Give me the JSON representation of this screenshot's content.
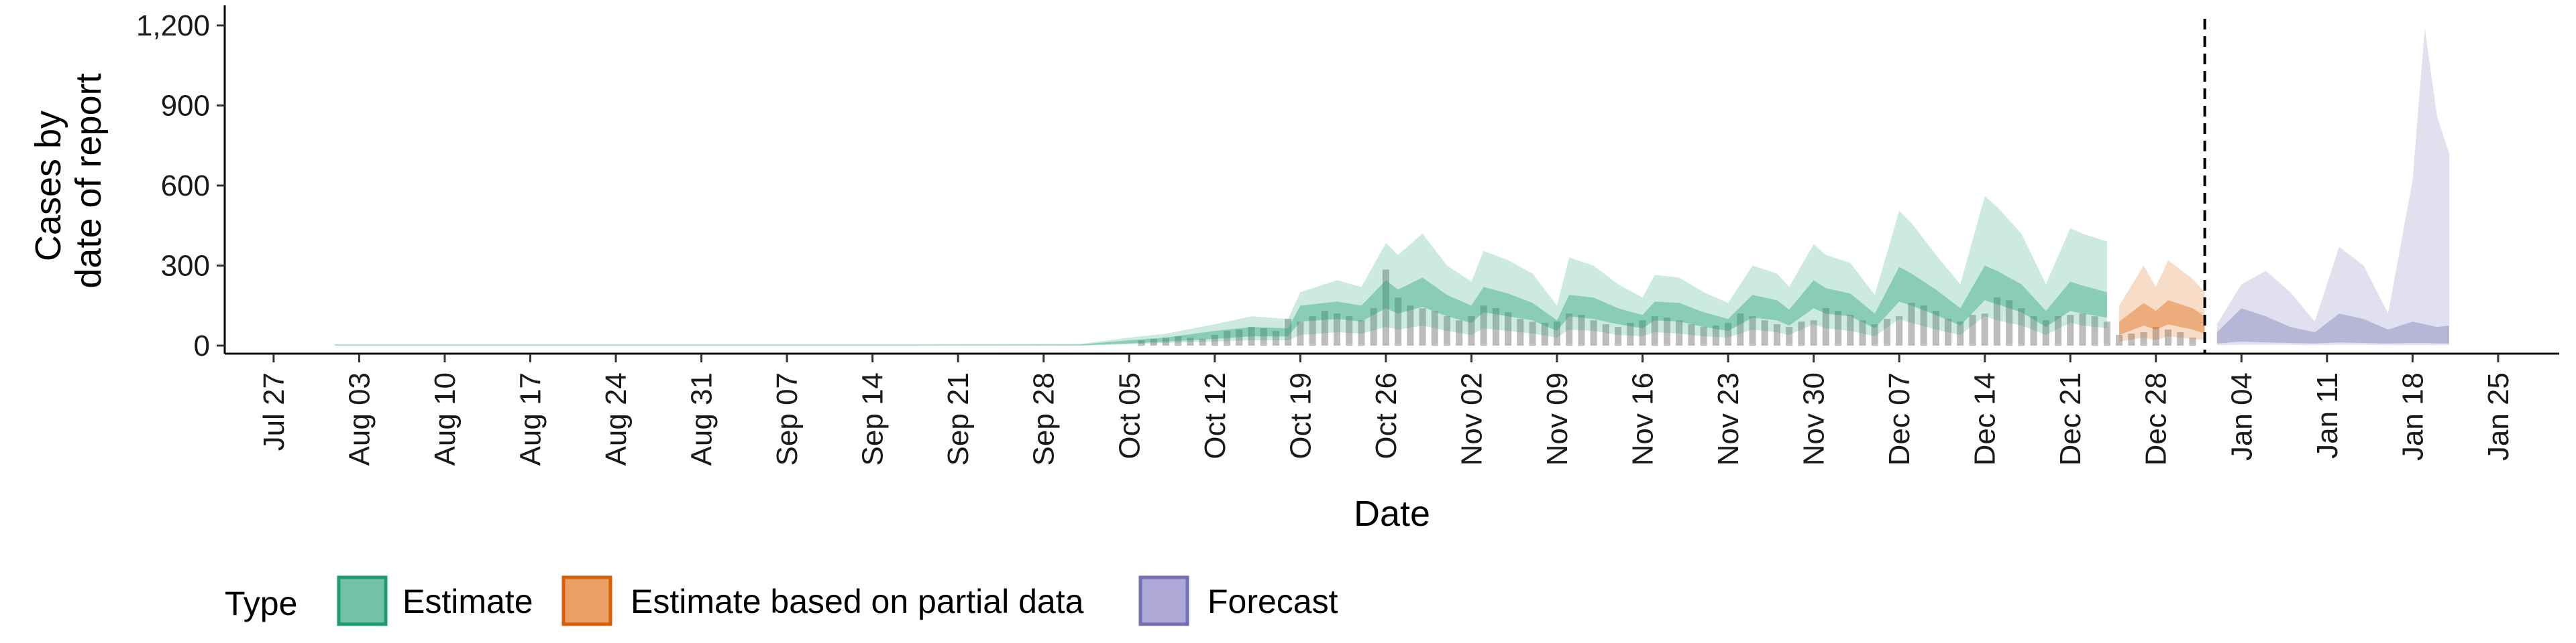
{
  "chart_data": {
    "type": "area",
    "title": "",
    "xlabel": "Date",
    "ylabel_lines": [
      "Cases by",
      "date of report"
    ],
    "ylim": [
      0,
      1250
    ],
    "y_ticks": [
      0,
      300,
      600,
      900,
      1200
    ],
    "y_tick_labels": [
      "0",
      "300",
      "600",
      "900",
      "1,200"
    ],
    "x_range": [
      "2020-07-23",
      "2021-01-30"
    ],
    "x_ticks": [
      "2020-07-27",
      "2020-08-03",
      "2020-08-10",
      "2020-08-17",
      "2020-08-24",
      "2020-08-31",
      "2020-09-07",
      "2020-09-14",
      "2020-09-21",
      "2020-09-28",
      "2020-10-05",
      "2020-10-12",
      "2020-10-19",
      "2020-10-26",
      "2020-11-02",
      "2020-11-09",
      "2020-11-16",
      "2020-11-23",
      "2020-11-30",
      "2020-12-07",
      "2020-12-14",
      "2020-12-21",
      "2020-12-28",
      "2021-01-04",
      "2021-01-11",
      "2021-01-18",
      "2021-01-25"
    ],
    "x_tick_labels": [
      "Jul 27",
      "Aug 03",
      "Aug 10",
      "Aug 17",
      "Aug 24",
      "Aug 31",
      "Sep 07",
      "Sep 14",
      "Sep 21",
      "Sep 28",
      "Oct 05",
      "Oct 12",
      "Oct 19",
      "Oct 26",
      "Nov 02",
      "Nov 09",
      "Nov 16",
      "Nov 23",
      "Nov 30",
      "Dec 07",
      "Dec 14",
      "Dec 21",
      "Dec 28",
      "Jan 04",
      "Jan 11",
      "Jan 18",
      "Jan 25"
    ],
    "vline_date": "2021-01-01",
    "grid": false,
    "legend": {
      "title": "Type",
      "position": "bottom",
      "entries": [
        {
          "label": "Estimate",
          "fill": "#74c2a6",
          "stroke": "#1b9e77"
        },
        {
          "label": "Estimate based on partial data",
          "fill": "#e8a067",
          "stroke": "#d95f02"
        },
        {
          "label": "Forecast",
          "fill": "#ada8d6",
          "stroke": "#7570b3"
        }
      ]
    },
    "colors": {
      "estimate": "#1b9e77",
      "partial": "#d95f02",
      "forecast": "#7570b3",
      "bars": "#bdbdbd"
    },
    "series": [
      {
        "name": "Estimate",
        "band_dates": [
          "2020-08-01",
          "2020-08-15",
          "2020-09-01",
          "2020-09-15",
          "2020-10-01",
          "2020-10-05",
          "2020-10-08",
          "2020-10-12",
          "2020-10-15",
          "2020-10-18",
          "2020-10-19",
          "2020-10-22",
          "2020-10-24",
          "2020-10-26",
          "2020-10-27",
          "2020-10-29",
          "2020-10-31",
          "2020-11-02",
          "2020-11-03",
          "2020-11-05",
          "2020-11-07",
          "2020-11-09",
          "2020-11-10",
          "2020-11-12",
          "2020-11-14",
          "2020-11-16",
          "2020-11-17",
          "2020-11-19",
          "2020-11-21",
          "2020-11-23",
          "2020-11-25",
          "2020-11-27",
          "2020-11-28",
          "2020-11-30",
          "2020-12-01",
          "2020-12-03",
          "2020-12-05",
          "2020-12-07",
          "2020-12-08",
          "2020-12-10",
          "2020-12-12",
          "2020-12-14",
          "2020-12-15",
          "2020-12-17",
          "2020-12-19",
          "2020-12-21",
          "2020-12-22",
          "2020-12-24"
        ],
        "outer_upper": [
          5,
          5,
          5,
          5,
          6,
          30,
          45,
          80,
          110,
          100,
          200,
          245,
          220,
          385,
          340,
          420,
          300,
          240,
          355,
          320,
          270,
          150,
          330,
          300,
          230,
          180,
          265,
          255,
          200,
          160,
          300,
          270,
          220,
          380,
          340,
          310,
          190,
          505,
          460,
          340,
          230,
          560,
          520,
          420,
          230,
          440,
          420,
          390
        ],
        "outer_lower": [
          0,
          0,
          0,
          0,
          0,
          5,
          10,
          15,
          20,
          20,
          40,
          50,
          45,
          70,
          60,
          75,
          55,
          40,
          65,
          55,
          45,
          30,
          60,
          55,
          40,
          35,
          50,
          45,
          35,
          30,
          60,
          50,
          40,
          80,
          65,
          55,
          35,
          100,
          85,
          60,
          40,
          110,
          95,
          75,
          40,
          85,
          75,
          65
        ],
        "inner_upper": [
          3,
          3,
          3,
          3,
          4,
          20,
          30,
          55,
          70,
          65,
          150,
          165,
          150,
          245,
          210,
          255,
          190,
          150,
          220,
          195,
          160,
          95,
          190,
          180,
          140,
          115,
          165,
          160,
          125,
          100,
          190,
          170,
          135,
          245,
          215,
          195,
          120,
          295,
          270,
          210,
          140,
          300,
          280,
          230,
          130,
          240,
          225,
          200
        ],
        "inner_lower": [
          1,
          1,
          1,
          1,
          1,
          8,
          15,
          25,
          35,
          35,
          90,
          100,
          90,
          140,
          120,
          145,
          110,
          85,
          125,
          110,
          95,
          55,
          110,
          100,
          80,
          65,
          95,
          90,
          70,
          55,
          105,
          95,
          75,
          140,
          120,
          110,
          65,
          165,
          150,
          115,
          75,
          170,
          155,
          125,
          70,
          130,
          120,
          105
        ]
      },
      {
        "name": "Estimate based on partial data",
        "band_dates": [
          "2020-12-25",
          "2020-12-27",
          "2020-12-28",
          "2020-12-29",
          "2020-12-31",
          "2021-01-01"
        ],
        "outer_upper": [
          150,
          300,
          220,
          320,
          250,
          200
        ],
        "outer_lower": [
          15,
          30,
          20,
          35,
          25,
          20
        ],
        "inner_upper": [
          90,
          160,
          130,
          170,
          140,
          110
        ],
        "inner_lower": [
          40,
          75,
          60,
          80,
          60,
          45
        ]
      },
      {
        "name": "Forecast",
        "band_dates": [
          "2021-01-02",
          "2021-01-04",
          "2021-01-06",
          "2021-01-08",
          "2021-01-10",
          "2021-01-12",
          "2021-01-14",
          "2021-01-16",
          "2021-01-18",
          "2021-01-19",
          "2021-01-20",
          "2021-01-21"
        ],
        "outer_upper": [
          80,
          230,
          280,
          200,
          90,
          370,
          300,
          120,
          620,
          1190,
          860,
          720
        ],
        "outer_lower": [
          2,
          3,
          3,
          3,
          2,
          3,
          3,
          2,
          2,
          2,
          2,
          2
        ],
        "inner_upper": [
          50,
          140,
          110,
          70,
          50,
          120,
          100,
          60,
          90,
          80,
          70,
          75
        ],
        "inner_lower": [
          8,
          15,
          12,
          10,
          8,
          12,
          10,
          8,
          10,
          10,
          8,
          8
        ]
      }
    ],
    "bars": {
      "dates": [
        "2020-10-06",
        "2020-10-07",
        "2020-10-08",
        "2020-10-09",
        "2020-10-10",
        "2020-10-11",
        "2020-10-12",
        "2020-10-13",
        "2020-10-14",
        "2020-10-15",
        "2020-10-16",
        "2020-10-17",
        "2020-10-18",
        "2020-10-19",
        "2020-10-20",
        "2020-10-21",
        "2020-10-22",
        "2020-10-23",
        "2020-10-24",
        "2020-10-25",
        "2020-10-26",
        "2020-10-27",
        "2020-10-28",
        "2020-10-29",
        "2020-10-30",
        "2020-10-31",
        "2020-11-01",
        "2020-11-02",
        "2020-11-03",
        "2020-11-04",
        "2020-11-05",
        "2020-11-06",
        "2020-11-07",
        "2020-11-08",
        "2020-11-09",
        "2020-11-10",
        "2020-11-11",
        "2020-11-12",
        "2020-11-13",
        "2020-11-14",
        "2020-11-15",
        "2020-11-16",
        "2020-11-17",
        "2020-11-18",
        "2020-11-19",
        "2020-11-20",
        "2020-11-21",
        "2020-11-22",
        "2020-11-23",
        "2020-11-24",
        "2020-11-25",
        "2020-11-26",
        "2020-11-27",
        "2020-11-28",
        "2020-11-29",
        "2020-11-30",
        "2020-12-01",
        "2020-12-02",
        "2020-12-03",
        "2020-12-04",
        "2020-12-05",
        "2020-12-06",
        "2020-12-07",
        "2020-12-08",
        "2020-12-09",
        "2020-12-10",
        "2020-12-11",
        "2020-12-12",
        "2020-12-13",
        "2020-12-14",
        "2020-12-15",
        "2020-12-16",
        "2020-12-17",
        "2020-12-18",
        "2020-12-19",
        "2020-12-20",
        "2020-12-21",
        "2020-12-22",
        "2020-12-23",
        "2020-12-24",
        "2020-12-25",
        "2020-12-26",
        "2020-12-27",
        "2020-12-28",
        "2020-12-29",
        "2020-12-30",
        "2020-12-31"
      ],
      "values": [
        20,
        25,
        30,
        35,
        30,
        25,
        40,
        55,
        60,
        70,
        65,
        55,
        100,
        90,
        110,
        130,
        120,
        110,
        95,
        140,
        285,
        180,
        150,
        140,
        130,
        110,
        95,
        110,
        150,
        140,
        125,
        100,
        90,
        85,
        90,
        120,
        115,
        95,
        80,
        70,
        85,
        95,
        110,
        105,
        95,
        80,
        70,
        75,
        85,
        120,
        110,
        95,
        80,
        70,
        90,
        95,
        140,
        130,
        115,
        95,
        80,
        100,
        110,
        160,
        150,
        130,
        100,
        90,
        115,
        120,
        180,
        170,
        140,
        110,
        95,
        110,
        115,
        120,
        110,
        90,
        40,
        45,
        50,
        70,
        60,
        50,
        30
      ]
    }
  }
}
